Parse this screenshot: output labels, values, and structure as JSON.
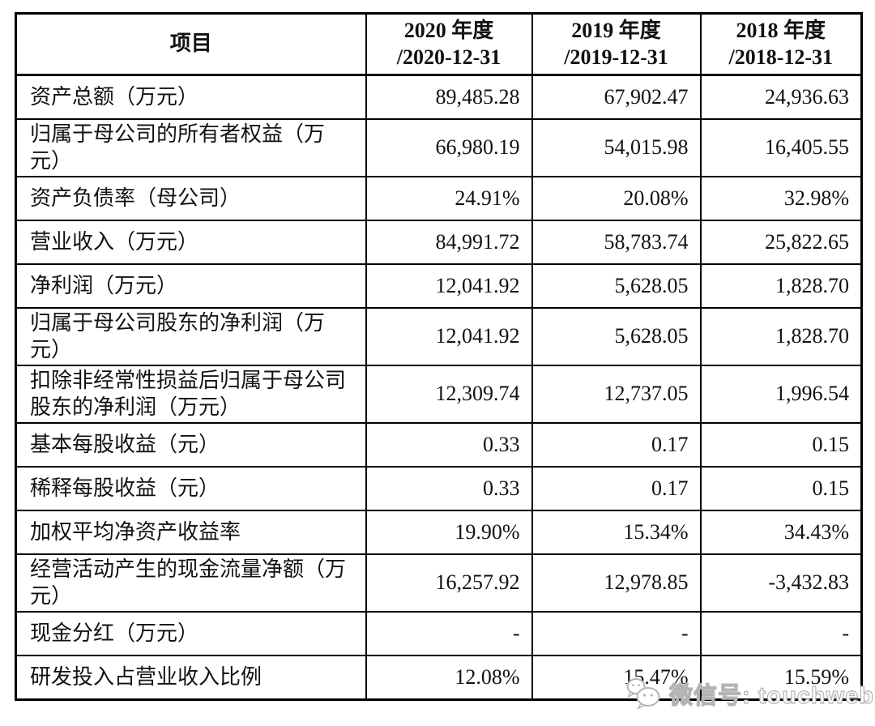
{
  "table": {
    "header": {
      "item_label": "项目",
      "period_columns": [
        "2020 年度\n/2020-12-31",
        "2019 年度\n/2019-12-31",
        "2018 年度\n/2018-12-31"
      ]
    },
    "rows": [
      {
        "label": "资产总额（万元）",
        "values": [
          "89,485.28",
          "67,902.47",
          "24,936.63"
        ]
      },
      {
        "label": "归属于母公司的所有者权益（万\n元）",
        "values": [
          "66,980.19",
          "54,015.98",
          "16,405.55"
        ]
      },
      {
        "label": "资产负债率（母公司）",
        "values": [
          "24.91%",
          "20.08%",
          "32.98%"
        ]
      },
      {
        "label": "营业收入（万元）",
        "values": [
          "84,991.72",
          "58,783.74",
          "25,822.65"
        ]
      },
      {
        "label": "净利润（万元）",
        "values": [
          "12,041.92",
          "5,628.05",
          "1,828.70"
        ]
      },
      {
        "label": "归属于母公司股东的净利润（万\n元）",
        "values": [
          "12,041.92",
          "5,628.05",
          "1,828.70"
        ]
      },
      {
        "label": "扣除非经常性损益后归属于母公司\n股东的净利润（万元）",
        "values": [
          "12,309.74",
          "12,737.05",
          "1,996.54"
        ]
      },
      {
        "label": "基本每股收益（元）",
        "values": [
          "0.33",
          "0.17",
          "0.15"
        ]
      },
      {
        "label": "稀释每股收益（元）",
        "values": [
          "0.33",
          "0.17",
          "0.15"
        ]
      },
      {
        "label": "加权平均净资产收益率",
        "values": [
          "19.90%",
          "15.34%",
          "34.43%"
        ]
      },
      {
        "label": "经营活动产生的现金流量净额（万\n元）",
        "values": [
          "16,257.92",
          "12,978.85",
          "-3,432.83"
        ]
      },
      {
        "label": "现金分红（万元）",
        "values": [
          "-",
          "-",
          "-"
        ]
      },
      {
        "label": "研发投入占营业收入比例",
        "values": [
          "12.08%",
          "15.47%",
          "15.59%"
        ]
      }
    ]
  },
  "watermark": {
    "label": "微信号: touchweb",
    "icon": "wechat-icon"
  },
  "colors": {
    "border": "#000000",
    "text": "#111111",
    "background": "#ffffff",
    "watermark": "#b4b4b4"
  }
}
